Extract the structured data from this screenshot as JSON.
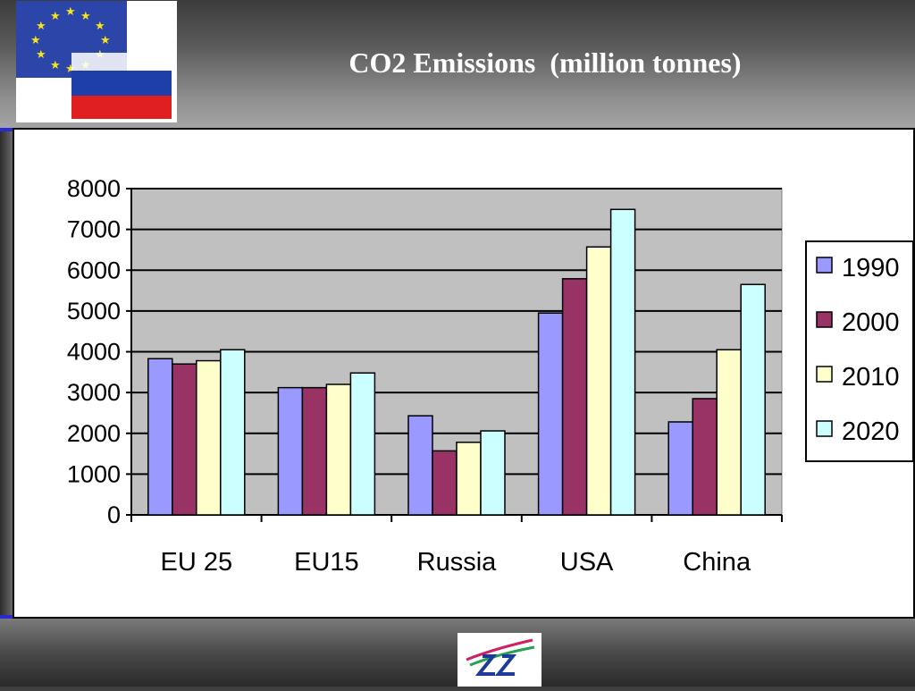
{
  "slide": {
    "title": "CO2 Emissions  (million tonnes)"
  },
  "colors": {
    "plot_background": "#c0c0c0",
    "series": [
      "#9999ff",
      "#993366",
      "#ffffcc",
      "#ccffff"
    ]
  },
  "icons": {
    "top_left": "eu-russia-flags-icon",
    "bottom_center": "organization-logo-icon"
  },
  "chart_data": {
    "type": "bar",
    "title": "",
    "xlabel": "",
    "ylabel": "",
    "categories": [
      "EU 25",
      "EU15",
      "Russia",
      "USA",
      "China"
    ],
    "series": [
      {
        "name": "1990",
        "values": [
          3830,
          3120,
          2430,
          4950,
          2280
        ]
      },
      {
        "name": "2000",
        "values": [
          3700,
          3120,
          1570,
          5790,
          2850
        ]
      },
      {
        "name": "2010",
        "values": [
          3780,
          3200,
          1780,
          6570,
          4050
        ]
      },
      {
        "name": "2020",
        "values": [
          4050,
          3480,
          2060,
          7490,
          5650
        ]
      }
    ],
    "ylim": [
      0,
      8000
    ],
    "yticks": [
      "0",
      "1000",
      "2000",
      "3000",
      "4000",
      "5000",
      "6000",
      "7000",
      "8000"
    ],
    "grid": true,
    "legend": "right"
  }
}
